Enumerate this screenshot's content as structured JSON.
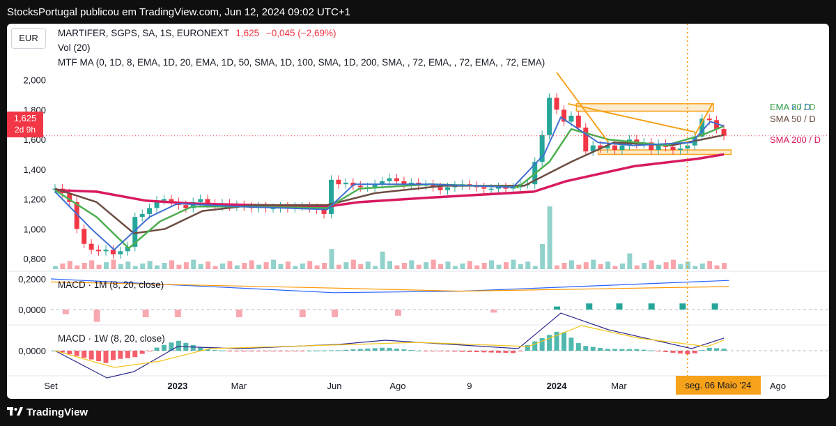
{
  "header": {
    "publisher_line": "StocksPortugal publicou em TradingView.com, Jun 12, 2024 09:02 UTC+1"
  },
  "footer": {
    "brand": "TradingView",
    "logo_icon": "tradingview-logo-icon"
  },
  "currency_button": "EUR",
  "legend": {
    "symbol": "MARTIFER, SGPS, SA, 1S, EURONEXT",
    "last": "1,625",
    "change": "−0,045 (−2,69%)",
    "vol": "Vol (20)",
    "mtf_ma": "MTF MA (0, 1D, 8, EMA, 1D, 20, EMA, 1D, 50, SMA, 1D, 100, SMA, 1D, 200, SMA, , 72, EMA, , 72, EMA, , 72, EMA)",
    "macd_1m": "MACD · 1M (8, 20, close)",
    "macd_1w": "MACD · 1W (8, 20, close)"
  },
  "price_tag": {
    "price": "1,625",
    "countdown": "2d 9h"
  },
  "right_labels": [
    {
      "text": "EMA 8 / D",
      "color": "#3d6fd1"
    },
    {
      "text": "EMA 20 / D",
      "color": "#4caf50"
    },
    {
      "text": "SMA 50 / D",
      "color": "#6d4c41"
    },
    {
      "text": "SMA 200 / D",
      "color": "#d81b60"
    }
  ],
  "highlighted_date": "seg. 06 Maio '24",
  "colors": {
    "up": "#26a69a",
    "down": "#f23645",
    "ema8": "#3d6fd1",
    "ema20": "#4caf50",
    "sma50": "#6d4c41",
    "sma200": "#d81b60",
    "trend": "#f7a21b"
  },
  "chart_data": {
    "type": "candlestick",
    "price_axis": {
      "ticks": [
        0.8,
        1.0,
        1.2,
        1.4,
        1.6,
        1.8,
        2.0
      ],
      "tick_labels": [
        "0,800",
        "1,000",
        "1,200",
        "1,400",
        "1,600",
        "1,800",
        "2,000"
      ],
      "ylim": [
        0.73,
        2.19
      ]
    },
    "x_axis": {
      "labels": [
        {
          "text": "Set",
          "date": "2022-09-01"
        },
        {
          "text": "2023",
          "date": "2023-01-01"
        },
        {
          "text": "Mar",
          "date": "2023-03-01"
        },
        {
          "text": "Jun",
          "date": "2023-06-01"
        },
        {
          "text": "Ago",
          "date": "2023-08-01"
        },
        {
          "text": "9",
          "date": "2023-10-09"
        },
        {
          "text": "2024",
          "date": "2024-01-01"
        },
        {
          "text": "Mar",
          "date": "2024-03-01"
        },
        {
          "text": "Ago",
          "date": "2024-08-01"
        }
      ],
      "xlim": [
        "2022-09-01",
        "2024-08-10"
      ]
    },
    "candles": [
      {
        "date": "2022-09-05",
        "c": 1.27
      },
      {
        "date": "2022-09-12",
        "c": 1.24
      },
      {
        "date": "2022-09-19",
        "c": 1.18
      },
      {
        "date": "2022-09-26",
        "c": 1.0
      },
      {
        "date": "2022-10-03",
        "c": 0.9
      },
      {
        "date": "2022-10-10",
        "c": 0.86
      },
      {
        "date": "2022-10-17",
        "c": 0.85
      },
      {
        "date": "2022-10-24",
        "c": 0.86
      },
      {
        "date": "2022-10-31",
        "c": 0.83
      },
      {
        "date": "2022-11-07",
        "c": 0.85
      },
      {
        "date": "2022-11-14",
        "c": 0.88
      },
      {
        "date": "2022-11-21",
        "c": 1.08
      },
      {
        "date": "2022-11-28",
        "c": 1.1
      },
      {
        "date": "2022-12-05",
        "c": 1.14
      },
      {
        "date": "2022-12-12",
        "c": 1.19
      },
      {
        "date": "2022-12-19",
        "c": 1.2
      },
      {
        "date": "2022-12-26",
        "c": 1.18
      },
      {
        "date": "2023-01-02",
        "c": 1.16
      },
      {
        "date": "2023-01-09",
        "c": 1.14
      },
      {
        "date": "2023-01-16",
        "c": 1.18
      },
      {
        "date": "2023-01-23",
        "c": 1.2
      },
      {
        "date": "2023-01-30",
        "c": 1.17
      },
      {
        "date": "2023-02-06",
        "c": 1.15
      },
      {
        "date": "2023-02-13",
        "c": 1.17
      },
      {
        "date": "2023-02-20",
        "c": 1.15
      },
      {
        "date": "2023-02-27",
        "c": 1.16
      },
      {
        "date": "2023-03-06",
        "c": 1.15
      },
      {
        "date": "2023-03-13",
        "c": 1.14
      },
      {
        "date": "2023-03-20",
        "c": 1.15
      },
      {
        "date": "2023-03-27",
        "c": 1.14
      },
      {
        "date": "2023-04-03",
        "c": 1.14
      },
      {
        "date": "2023-04-10",
        "c": 1.15
      },
      {
        "date": "2023-04-17",
        "c": 1.14
      },
      {
        "date": "2023-04-24",
        "c": 1.15
      },
      {
        "date": "2023-05-01",
        "c": 1.15
      },
      {
        "date": "2023-05-08",
        "c": 1.14
      },
      {
        "date": "2023-05-15",
        "c": 1.13
      },
      {
        "date": "2023-05-22",
        "c": 1.1
      },
      {
        "date": "2023-05-29",
        "c": 1.33
      },
      {
        "date": "2023-06-05",
        "c": 1.3
      },
      {
        "date": "2023-06-12",
        "c": 1.31
      },
      {
        "date": "2023-06-19",
        "c": 1.29
      },
      {
        "date": "2023-06-26",
        "c": 1.28
      },
      {
        "date": "2023-07-03",
        "c": 1.28
      },
      {
        "date": "2023-07-10",
        "c": 1.3
      },
      {
        "date": "2023-07-17",
        "c": 1.32
      },
      {
        "date": "2023-07-24",
        "c": 1.34
      },
      {
        "date": "2023-07-31",
        "c": 1.32
      },
      {
        "date": "2023-08-07",
        "c": 1.3
      },
      {
        "date": "2023-08-14",
        "c": 1.31
      },
      {
        "date": "2023-08-21",
        "c": 1.29
      },
      {
        "date": "2023-08-28",
        "c": 1.3
      },
      {
        "date": "2023-09-04",
        "c": 1.28
      },
      {
        "date": "2023-09-11",
        "c": 1.26
      },
      {
        "date": "2023-09-18",
        "c": 1.28
      },
      {
        "date": "2023-09-25",
        "c": 1.29
      },
      {
        "date": "2023-10-02",
        "c": 1.3
      },
      {
        "date": "2023-10-09",
        "c": 1.29
      },
      {
        "date": "2023-10-16",
        "c": 1.28
      },
      {
        "date": "2023-10-23",
        "c": 1.27
      },
      {
        "date": "2023-10-30",
        "c": 1.27
      },
      {
        "date": "2023-11-06",
        "c": 1.28
      },
      {
        "date": "2023-11-13",
        "c": 1.27
      },
      {
        "date": "2023-11-20",
        "c": 1.28
      },
      {
        "date": "2023-11-27",
        "c": 1.3
      },
      {
        "date": "2023-12-04",
        "c": 1.3
      },
      {
        "date": "2023-12-11",
        "c": 1.45
      },
      {
        "date": "2023-12-18",
        "c": 1.63
      },
      {
        "date": "2023-12-25",
        "c": 1.88
      },
      {
        "date": "2024-01-01",
        "c": 1.8
      },
      {
        "date": "2024-01-08",
        "c": 1.72
      },
      {
        "date": "2024-01-15",
        "c": 1.76
      },
      {
        "date": "2024-01-22",
        "c": 1.68
      },
      {
        "date": "2024-01-29",
        "c": 1.52
      },
      {
        "date": "2024-02-05",
        "c": 1.56
      },
      {
        "date": "2024-02-12",
        "c": 1.54
      },
      {
        "date": "2024-02-19",
        "c": 1.56
      },
      {
        "date": "2024-02-26",
        "c": 1.53
      },
      {
        "date": "2024-03-04",
        "c": 1.56
      },
      {
        "date": "2024-03-11",
        "c": 1.6
      },
      {
        "date": "2024-03-18",
        "c": 1.57
      },
      {
        "date": "2024-03-25",
        "c": 1.58
      },
      {
        "date": "2024-04-01",
        "c": 1.53
      },
      {
        "date": "2024-04-08",
        "c": 1.57
      },
      {
        "date": "2024-04-15",
        "c": 1.55
      },
      {
        "date": "2024-04-22",
        "c": 1.53
      },
      {
        "date": "2024-04-29",
        "c": 1.54
      },
      {
        "date": "2024-05-06",
        "c": 1.56
      },
      {
        "date": "2024-05-13",
        "c": 1.62
      },
      {
        "date": "2024-05-20",
        "c": 1.74
      },
      {
        "date": "2024-05-27",
        "c": 1.73
      },
      {
        "date": "2024-06-03",
        "c": 1.67
      },
      {
        "date": "2024-06-10",
        "c": 1.625
      }
    ],
    "moving_averages": {
      "ema8": [
        [
          "2022-09-05",
          1.25
        ],
        [
          "2022-10-10",
          1.0
        ],
        [
          "2022-11-01",
          0.86
        ],
        [
          "2022-12-05",
          1.08
        ],
        [
          "2023-01-01",
          1.17
        ],
        [
          "2023-03-01",
          1.15
        ],
        [
          "2023-05-25",
          1.13
        ],
        [
          "2023-06-20",
          1.3
        ],
        [
          "2023-09-01",
          1.3
        ],
        [
          "2023-11-20",
          1.28
        ],
        [
          "2023-12-20",
          1.5
        ],
        [
          "2024-01-05",
          1.75
        ],
        [
          "2024-02-10",
          1.58
        ],
        [
          "2024-03-15",
          1.56
        ],
        [
          "2024-05-10",
          1.58
        ],
        [
          "2024-05-28",
          1.72
        ],
        [
          "2024-06-10",
          1.69
        ]
      ],
      "ema20": [
        [
          "2022-09-05",
          1.26
        ],
        [
          "2022-10-15",
          1.08
        ],
        [
          "2022-11-15",
          0.87
        ],
        [
          "2022-12-15",
          1.05
        ],
        [
          "2023-01-15",
          1.15
        ],
        [
          "2023-03-01",
          1.15
        ],
        [
          "2023-05-25",
          1.14
        ],
        [
          "2023-06-25",
          1.27
        ],
        [
          "2023-09-01",
          1.3
        ],
        [
          "2023-11-25",
          1.28
        ],
        [
          "2023-12-25",
          1.45
        ],
        [
          "2024-01-15",
          1.67
        ],
        [
          "2024-02-20",
          1.6
        ],
        [
          "2024-04-15",
          1.56
        ],
        [
          "2024-05-20",
          1.63
        ],
        [
          "2024-06-10",
          1.69
        ]
      ],
      "sma50": [
        [
          "2022-09-05",
          1.27
        ],
        [
          "2022-10-15",
          1.18
        ],
        [
          "2022-11-20",
          0.97
        ],
        [
          "2022-12-20",
          1.0
        ],
        [
          "2023-01-25",
          1.12
        ],
        [
          "2023-03-15",
          1.16
        ],
        [
          "2023-05-25",
          1.16
        ],
        [
          "2023-07-10",
          1.24
        ],
        [
          "2023-09-15",
          1.29
        ],
        [
          "2023-12-01",
          1.29
        ],
        [
          "2024-01-15",
          1.45
        ],
        [
          "2024-02-25",
          1.58
        ],
        [
          "2024-04-20",
          1.56
        ],
        [
          "2024-05-20",
          1.6
        ],
        [
          "2024-06-10",
          1.63
        ]
      ],
      "sma200": [
        [
          "2022-09-05",
          1.26
        ],
        [
          "2022-10-15",
          1.25
        ],
        [
          "2022-12-01",
          1.19
        ],
        [
          "2023-01-15",
          1.17
        ],
        [
          "2023-03-15",
          1.16
        ],
        [
          "2023-05-25",
          1.15
        ],
        [
          "2023-06-25",
          1.18
        ],
        [
          "2023-09-01",
          1.21
        ],
        [
          "2023-12-10",
          1.25
        ],
        [
          "2024-01-10",
          1.32
        ],
        [
          "2024-03-15",
          1.42
        ],
        [
          "2024-05-15",
          1.47
        ],
        [
          "2024-06-10",
          1.5
        ]
      ]
    },
    "trend_lines": [
      [
        [
          "2024-01-01",
          2.05
        ],
        [
          "2024-02-20",
          1.58
        ]
      ],
      [
        [
          "2024-01-12",
          1.84
        ],
        [
          "2024-05-13",
          1.65
        ]
      ],
      [
        [
          "2024-05-13",
          1.63
        ],
        [
          "2024-05-30",
          1.84
        ]
      ]
    ],
    "zones": [
      {
        "x": [
          "2024-01-20",
          "2024-05-31"
        ],
        "y": [
          1.79,
          1.84
        ]
      },
      {
        "x": [
          "2024-02-10",
          "2024-06-17"
        ],
        "y": [
          1.5,
          1.53
        ]
      }
    ],
    "volume": {
      "max_shown": 1.0,
      "note_values": [
        {
          "date": "2023-05-29",
          "v": 0.32
        },
        {
          "date": "2023-07-17",
          "v": 0.28
        },
        {
          "date": "2023-12-18",
          "v": 0.4
        },
        {
          "date": "2023-12-25",
          "v": 1.0
        },
        {
          "date": "2024-03-11",
          "v": 0.25
        }
      ]
    },
    "macd_1m": {
      "title": "MACD · 1M (8, 20, close)",
      "ticks": [
        "0,2000",
        "0,0000"
      ],
      "macd": [
        [
          "2022-09-01",
          0.2
        ],
        [
          "2023-06-01",
          0.11
        ],
        [
          "2023-10-01",
          0.12
        ],
        [
          "2024-06-15",
          0.19
        ]
      ],
      "signal": [
        [
          "2022-09-01",
          0.18
        ],
        [
          "2023-06-01",
          0.14
        ],
        [
          "2023-10-01",
          0.12
        ],
        [
          "2024-06-15",
          0.15
        ]
      ],
      "hist": [
        [
          "2022-09-15",
          -0.03
        ],
        [
          "2022-10-15",
          -0.08
        ],
        [
          "2022-12-01",
          -0.05
        ],
        [
          "2023-01-01",
          -0.05
        ],
        [
          "2023-03-01",
          -0.05
        ],
        [
          "2023-05-01",
          -0.05
        ],
        [
          "2023-06-01",
          -0.05
        ],
        [
          "2023-08-01",
          -0.04
        ],
        [
          "2023-11-01",
          -0.02
        ],
        [
          "2024-01-01",
          0.02
        ],
        [
          "2024-02-01",
          0.04
        ],
        [
          "2024-03-01",
          0.04
        ],
        [
          "2024-04-01",
          0.04
        ],
        [
          "2024-05-01",
          0.04
        ],
        [
          "2024-06-01",
          0.04
        ]
      ]
    },
    "macd_1w": {
      "title": "MACD · 1W (8, 20, close)",
      "ticks": [
        "0,0000"
      ],
      "macd": [
        [
          "2022-09-05",
          0.0
        ],
        [
          "2022-10-25",
          -0.13
        ],
        [
          "2022-11-20",
          -0.1
        ],
        [
          "2023-01-01",
          0.02
        ],
        [
          "2023-03-01",
          0.01
        ],
        [
          "2023-06-05",
          0.03
        ],
        [
          "2023-07-20",
          0.05
        ],
        [
          "2023-11-25",
          0.01
        ],
        [
          "2024-01-05",
          0.18
        ],
        [
          "2024-02-20",
          0.1
        ],
        [
          "2024-05-10",
          0.01
        ],
        [
          "2024-06-10",
          0.06
        ]
      ],
      "signal": [
        [
          "2022-09-05",
          0.0
        ],
        [
          "2022-11-01",
          -0.08
        ],
        [
          "2022-12-15",
          -0.05
        ],
        [
          "2023-02-01",
          0.01
        ],
        [
          "2023-06-20",
          0.03
        ],
        [
          "2023-08-20",
          0.04
        ],
        [
          "2023-12-05",
          0.02
        ],
        [
          "2024-01-25",
          0.12
        ],
        [
          "2024-03-20",
          0.06
        ],
        [
          "2024-05-25",
          0.02
        ],
        [
          "2024-06-10",
          0.05
        ]
      ]
    }
  }
}
